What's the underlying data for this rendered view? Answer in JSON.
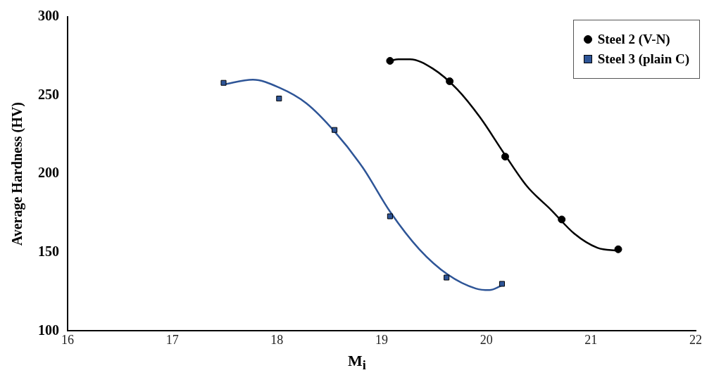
{
  "chart_data": {
    "type": "scatter",
    "xlabel": "M$_{i}$",
    "ylabel": "Average Hardness (HV)",
    "xlim": [
      16,
      22
    ],
    "xticks": [
      16,
      17,
      18,
      19,
      20,
      21,
      22
    ],
    "ylim": [
      100,
      300
    ],
    "yticks": [
      100,
      150,
      200,
      250,
      300
    ],
    "grid": false,
    "legend": "top right",
    "series": [
      {
        "name": "Steel 2 (V-N)",
        "marker": "circle",
        "color": "#000000",
        "x": [
          19.08,
          19.65,
          20.18,
          20.72,
          21.26
        ],
        "values": [
          272,
          259,
          211,
          171,
          152
        ]
      },
      {
        "name": "Steel 3 (plain C)",
        "marker": "square",
        "color": "#2e5597",
        "x": [
          17.49,
          18.02,
          18.55,
          19.08,
          19.62,
          20.15
        ],
        "values": [
          258,
          248,
          228,
          173,
          134,
          130
        ]
      },
      {
        "type": "line",
        "marker": "none",
        "color": "#000000",
        "x": [
          19.08,
          19.16,
          19.27,
          19.49,
          19.72,
          19.94,
          20.17,
          20.39,
          20.62,
          20.84,
          21.06,
          21.26
        ],
        "values": [
          272,
          273,
          273,
          267,
          254,
          236,
          213,
          192,
          177,
          162,
          153,
          151
        ]
      },
      {
        "type": "line",
        "marker": "none",
        "color": "#2e5597",
        "x": [
          17.49,
          17.77,
          18.02,
          18.28,
          18.55,
          18.82,
          19.08,
          19.36,
          19.63,
          19.9,
          20.03,
          20.15
        ],
        "values": [
          257,
          260,
          255,
          245,
          227,
          204,
          176,
          152,
          136,
          127,
          126,
          129
        ]
      }
    ]
  }
}
